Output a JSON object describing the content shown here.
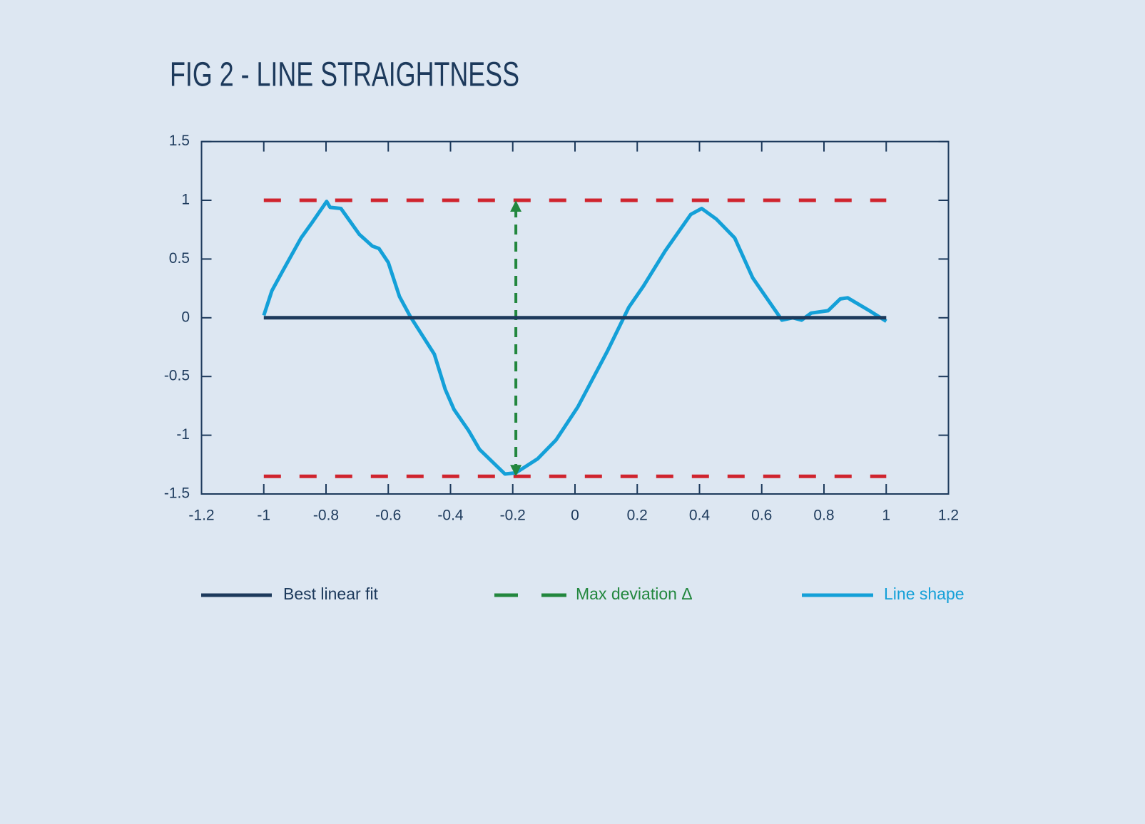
{
  "chart_data": {
    "type": "line",
    "title": "FIG 2 - LINE STRAIGHTNESS",
    "xlim": [
      -1.2,
      1.2
    ],
    "xticks": [
      -1.2,
      -1,
      -0.8,
      -0.6,
      -0.4,
      -0.2,
      0,
      0.2,
      0.4,
      0.6,
      0.8,
      1,
      1.2
    ],
    "ylim": [
      -1.5,
      1.5
    ],
    "yticks": [
      -1.5,
      -1,
      -0.5,
      0,
      0.5,
      1,
      1.5
    ],
    "legend": "bottom",
    "series": [
      {
        "name": "Best linear fit",
        "color": "#1d3a5c",
        "style": "solid",
        "x": [
          -1,
          1
        ],
        "values": [
          0,
          0
        ]
      },
      {
        "name": "Max deviation Δ",
        "color": "#22873e",
        "style": "dashed",
        "arrows": true,
        "x": [
          -0.19,
          -0.19
        ],
        "values": [
          -1.33,
          0.98
        ]
      },
      {
        "name": "Line shape",
        "color": "#14a0d8",
        "style": "solid",
        "x": [
          -1,
          -0.974,
          -0.939,
          -0.88,
          -0.845,
          -0.798,
          -0.787,
          -0.752,
          -0.693,
          -0.651,
          -0.63,
          -0.6,
          -0.564,
          -0.529,
          -0.452,
          -0.417,
          -0.389,
          -0.342,
          -0.307,
          -0.225,
          -0.19,
          -0.12,
          -0.061,
          0.009,
          0.103,
          0.173,
          0.22,
          0.29,
          0.372,
          0.407,
          0.454,
          0.513,
          0.571,
          0.665,
          0.7,
          0.728,
          0.759,
          0.813,
          0.852,
          0.876,
          0.946,
          1.0
        ],
        "values": [
          0.02,
          0.23,
          0.4,
          0.68,
          0.81,
          0.99,
          0.94,
          0.93,
          0.71,
          0.61,
          0.59,
          0.47,
          0.18,
          0.01,
          -0.31,
          -0.61,
          -0.78,
          -0.96,
          -1.12,
          -1.33,
          -1.32,
          -1.2,
          -1.04,
          -0.76,
          -0.29,
          0.09,
          0.27,
          0.57,
          0.88,
          0.93,
          0.84,
          0.68,
          0.34,
          -0.02,
          0,
          -0.02,
          0.04,
          0.06,
          0.16,
          0.17,
          0.06,
          -0.03
        ]
      },
      {
        "color": "#d0242e",
        "style": "dashed",
        "x": [
          -1,
          1
        ],
        "values": [
          1,
          1
        ]
      },
      {
        "color": "#d0242e",
        "style": "dashed",
        "x": [
          -1,
          1
        ],
        "values": [
          -1.35,
          -1.35
        ]
      }
    ]
  }
}
